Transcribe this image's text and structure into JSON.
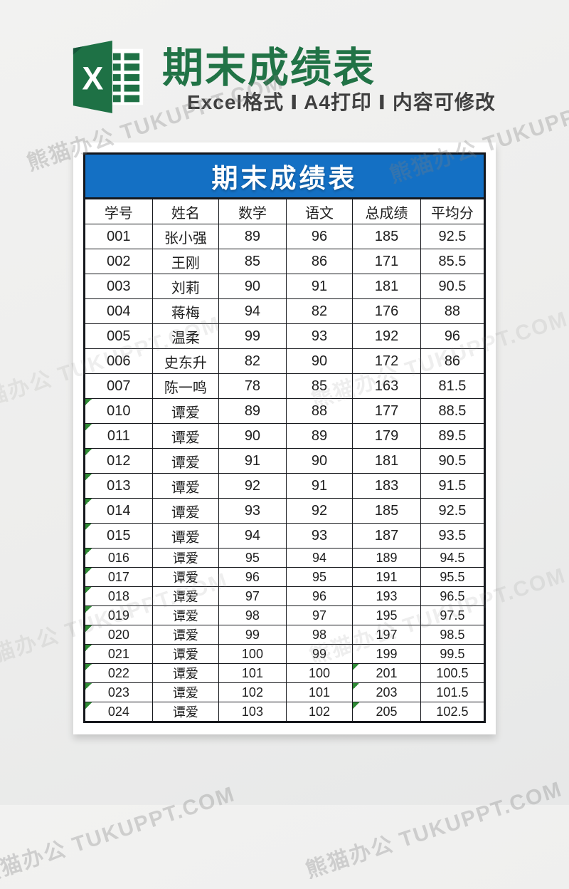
{
  "header": {
    "title": "期末成绩表",
    "subtitle": "Excel格式 Ⅰ A4打印 Ⅰ 内容可修改",
    "icon": "excel-logo"
  },
  "watermark": {
    "text": "熊猫办公 TUKUPPT.COM"
  },
  "colors": {
    "excel_green": "#217346",
    "banner_blue": "#1470c4",
    "flag_green": "#2f8b35",
    "subtitle_gray": "#3f3f3f"
  },
  "table": {
    "title": "期末成绩表",
    "columns": [
      "学号",
      "姓名",
      "数学",
      "语文",
      "总成绩",
      "平均分"
    ],
    "rows": [
      {
        "cells": [
          "001",
          "张小强",
          "89",
          "96",
          "185",
          "92.5"
        ],
        "flags": []
      },
      {
        "cells": [
          "002",
          "王刚",
          "85",
          "86",
          "171",
          "85.5"
        ],
        "flags": []
      },
      {
        "cells": [
          "003",
          "刘莉",
          "90",
          "91",
          "181",
          "90.5"
        ],
        "flags": []
      },
      {
        "cells": [
          "004",
          "蒋梅",
          "94",
          "82",
          "176",
          "88"
        ],
        "flags": []
      },
      {
        "cells": [
          "005",
          "温柔",
          "99",
          "93",
          "192",
          "96"
        ],
        "flags": []
      },
      {
        "cells": [
          "006",
          "史东升",
          "82",
          "90",
          "172",
          "86"
        ],
        "flags": []
      },
      {
        "cells": [
          "007",
          "陈一鸣",
          "78",
          "85",
          "163",
          "81.5"
        ],
        "flags": []
      },
      {
        "cells": [
          "010",
          "谭爱",
          "89",
          "88",
          "177",
          "88.5"
        ],
        "flags": [
          0
        ]
      },
      {
        "cells": [
          "011",
          "谭爱",
          "90",
          "89",
          "179",
          "89.5"
        ],
        "flags": [
          0
        ]
      },
      {
        "cells": [
          "012",
          "谭爱",
          "91",
          "90",
          "181",
          "90.5"
        ],
        "flags": [
          0
        ]
      },
      {
        "cells": [
          "013",
          "谭爱",
          "92",
          "91",
          "183",
          "91.5"
        ],
        "flags": [
          0
        ]
      },
      {
        "cells": [
          "014",
          "谭爱",
          "93",
          "92",
          "185",
          "92.5"
        ],
        "flags": [
          0
        ]
      },
      {
        "cells": [
          "015",
          "谭爱",
          "94",
          "93",
          "187",
          "93.5"
        ],
        "flags": [
          0
        ]
      },
      {
        "cells": [
          "016",
          "谭爱",
          "95",
          "94",
          "189",
          "94.5"
        ],
        "flags": [
          0
        ]
      },
      {
        "cells": [
          "017",
          "谭爱",
          "96",
          "95",
          "191",
          "95.5"
        ],
        "flags": [
          0
        ]
      },
      {
        "cells": [
          "018",
          "谭爱",
          "97",
          "96",
          "193",
          "96.5"
        ],
        "flags": [
          0
        ]
      },
      {
        "cells": [
          "019",
          "谭爱",
          "98",
          "97",
          "195",
          "97.5"
        ],
        "flags": [
          0
        ]
      },
      {
        "cells": [
          "020",
          "谭爱",
          "99",
          "98",
          "197",
          "98.5"
        ],
        "flags": [
          0
        ]
      },
      {
        "cells": [
          "021",
          "谭爱",
          "100",
          "99",
          "199",
          "99.5"
        ],
        "flags": [
          0
        ]
      },
      {
        "cells": [
          "022",
          "谭爱",
          "101",
          "100",
          "201",
          "100.5"
        ],
        "flags": [
          0,
          4
        ]
      },
      {
        "cells": [
          "023",
          "谭爱",
          "102",
          "101",
          "203",
          "101.5"
        ],
        "flags": [
          0,
          4
        ]
      },
      {
        "cells": [
          "024",
          "谭爱",
          "103",
          "102",
          "205",
          "102.5"
        ],
        "flags": [
          0,
          4
        ]
      }
    ]
  }
}
